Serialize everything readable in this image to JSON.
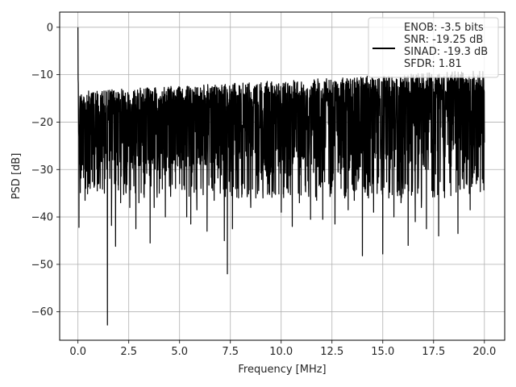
{
  "chart_data": {
    "type": "line",
    "title": "",
    "xlabel": "Frequency [MHz]",
    "ylabel": "PSD [dB]",
    "xlim": [
      -0.9,
      21.0
    ],
    "ylim": [
      -66,
      3.2
    ],
    "xticks": [
      0.0,
      2.5,
      5.0,
      7.5,
      10.0,
      12.5,
      15.0,
      17.5,
      20.0
    ],
    "xtick_labels": [
      "0.0",
      "2.5",
      "5.0",
      "7.5",
      "10.0",
      "12.5",
      "15.0",
      "17.5",
      "20.0"
    ],
    "yticks": [
      0,
      -10,
      -20,
      -30,
      -40,
      -50,
      -60
    ],
    "ytick_labels": [
      "0",
      "−10",
      "−20",
      "−30",
      "−40",
      "−50",
      "−60"
    ],
    "grid": true,
    "legend_position": "top-right",
    "series": [
      {
        "name": "",
        "color": "#000000",
        "x_range": [
          0.0,
          20.0
        ],
        "features": {
          "peak": {
            "x": 0.0,
            "y": 0.0
          },
          "min_dip": {
            "x": 1.45,
            "y": -62.8
          },
          "upper_envelope_start": -13.5,
          "upper_envelope_end": -9.0,
          "floor_band": [
            -36.0,
            -14.0
          ],
          "notable_dips": [
            {
              "x": 0.05,
              "y": -42.2
            },
            {
              "x": 0.35,
              "y": -36.5
            },
            {
              "x": 0.5,
              "y": -33.0
            },
            {
              "x": 0.6,
              "y": -34.0
            },
            {
              "x": 0.95,
              "y": -34.5
            },
            {
              "x": 1.1,
              "y": -31.0
            },
            {
              "x": 1.3,
              "y": -35.0
            },
            {
              "x": 1.45,
              "y": -62.8
            },
            {
              "x": 1.65,
              "y": -41.8
            },
            {
              "x": 1.85,
              "y": -46.2
            },
            {
              "x": 2.1,
              "y": -37.0
            },
            {
              "x": 2.3,
              "y": -33.0
            },
            {
              "x": 2.55,
              "y": -38.0
            },
            {
              "x": 2.85,
              "y": -42.5
            },
            {
              "x": 3.0,
              "y": -37.0
            },
            {
              "x": 3.3,
              "y": -33.0
            },
            {
              "x": 3.55,
              "y": -45.5
            },
            {
              "x": 3.75,
              "y": -38.0
            },
            {
              "x": 4.0,
              "y": -35.0
            },
            {
              "x": 4.3,
              "y": -40.0
            },
            {
              "x": 4.5,
              "y": -33.5
            },
            {
              "x": 4.8,
              "y": -34.0
            },
            {
              "x": 5.0,
              "y": -33.0
            },
            {
              "x": 5.35,
              "y": -40.0
            },
            {
              "x": 5.55,
              "y": -41.5
            },
            {
              "x": 5.85,
              "y": -38.5
            },
            {
              "x": 6.05,
              "y": -34.0
            },
            {
              "x": 6.35,
              "y": -43.0
            },
            {
              "x": 6.7,
              "y": -36.5
            },
            {
              "x": 7.0,
              "y": -35.0
            },
            {
              "x": 7.2,
              "y": -45.0
            },
            {
              "x": 7.35,
              "y": -52.0
            },
            {
              "x": 7.6,
              "y": -42.5
            },
            {
              "x": 7.9,
              "y": -36.0
            },
            {
              "x": 8.2,
              "y": -34.0
            },
            {
              "x": 8.5,
              "y": -38.0
            },
            {
              "x": 8.75,
              "y": -36.0
            },
            {
              "x": 9.1,
              "y": -36.0
            },
            {
              "x": 9.35,
              "y": -33.0
            },
            {
              "x": 9.65,
              "y": -35.0
            },
            {
              "x": 10.0,
              "y": -39.0
            },
            {
              "x": 10.3,
              "y": -34.0
            },
            {
              "x": 10.55,
              "y": -42.0
            },
            {
              "x": 10.9,
              "y": -37.0
            },
            {
              "x": 11.2,
              "y": -34.5
            },
            {
              "x": 11.45,
              "y": -40.5
            },
            {
              "x": 11.75,
              "y": -36.5
            },
            {
              "x": 12.05,
              "y": -40.5
            },
            {
              "x": 12.35,
              "y": -33.0
            },
            {
              "x": 12.65,
              "y": -41.5
            },
            {
              "x": 12.95,
              "y": -34.0
            },
            {
              "x": 13.3,
              "y": -38.5
            },
            {
              "x": 13.6,
              "y": -36.5
            },
            {
              "x": 14.0,
              "y": -48.2
            },
            {
              "x": 14.3,
              "y": -36.0
            },
            {
              "x": 14.55,
              "y": -39.0
            },
            {
              "x": 15.0,
              "y": -47.8
            },
            {
              "x": 15.3,
              "y": -36.0
            },
            {
              "x": 15.55,
              "y": -40.0
            },
            {
              "x": 15.9,
              "y": -37.0
            },
            {
              "x": 16.25,
              "y": -46.0
            },
            {
              "x": 16.6,
              "y": -41.0
            },
            {
              "x": 16.9,
              "y": -38.0
            },
            {
              "x": 17.15,
              "y": -42.5
            },
            {
              "x": 17.5,
              "y": -32.5
            },
            {
              "x": 17.75,
              "y": -44.0
            },
            {
              "x": 18.0,
              "y": -34.5
            },
            {
              "x": 18.35,
              "y": -35.5
            },
            {
              "x": 18.7,
              "y": -43.5
            },
            {
              "x": 19.0,
              "y": -34.0
            },
            {
              "x": 19.3,
              "y": -38.5
            },
            {
              "x": 19.6,
              "y": -33.0
            },
            {
              "x": 19.9,
              "y": -32.0
            }
          ]
        }
      }
    ],
    "legend_entries": [
      "ENOB: -3.5 bits",
      "SNR: -19.25 dB",
      "SINAD: -19.3 dB",
      "SFDR: 1.81"
    ]
  }
}
